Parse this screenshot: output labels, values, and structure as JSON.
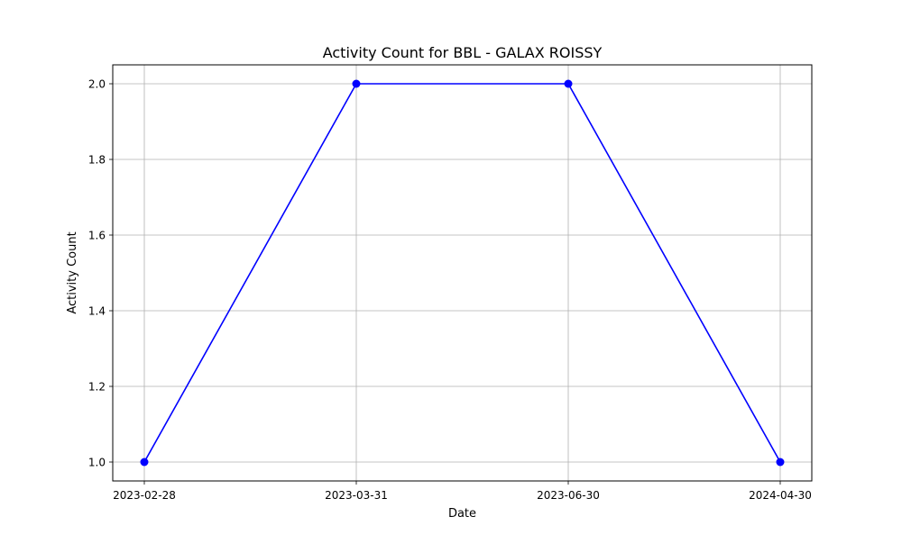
{
  "chart_data": {
    "type": "line",
    "title": "Activity Count for BBL - GALAX ROISSY",
    "xlabel": "Date",
    "ylabel": "Activity Count",
    "categories": [
      "2023-02-28",
      "2023-03-31",
      "2023-06-30",
      "2024-04-30"
    ],
    "series": [
      {
        "values": [
          1.0,
          2.0,
          2.0,
          1.0
        ],
        "color": "#0000ff",
        "marker": "circle"
      }
    ],
    "ylim": [
      0.95,
      2.05
    ],
    "yticks": [
      "1.0",
      "1.2",
      "1.4",
      "1.6",
      "1.8",
      "2.0"
    ],
    "grid": true,
    "axes_color": "#000000",
    "grid_color": "#b0b0b0"
  }
}
